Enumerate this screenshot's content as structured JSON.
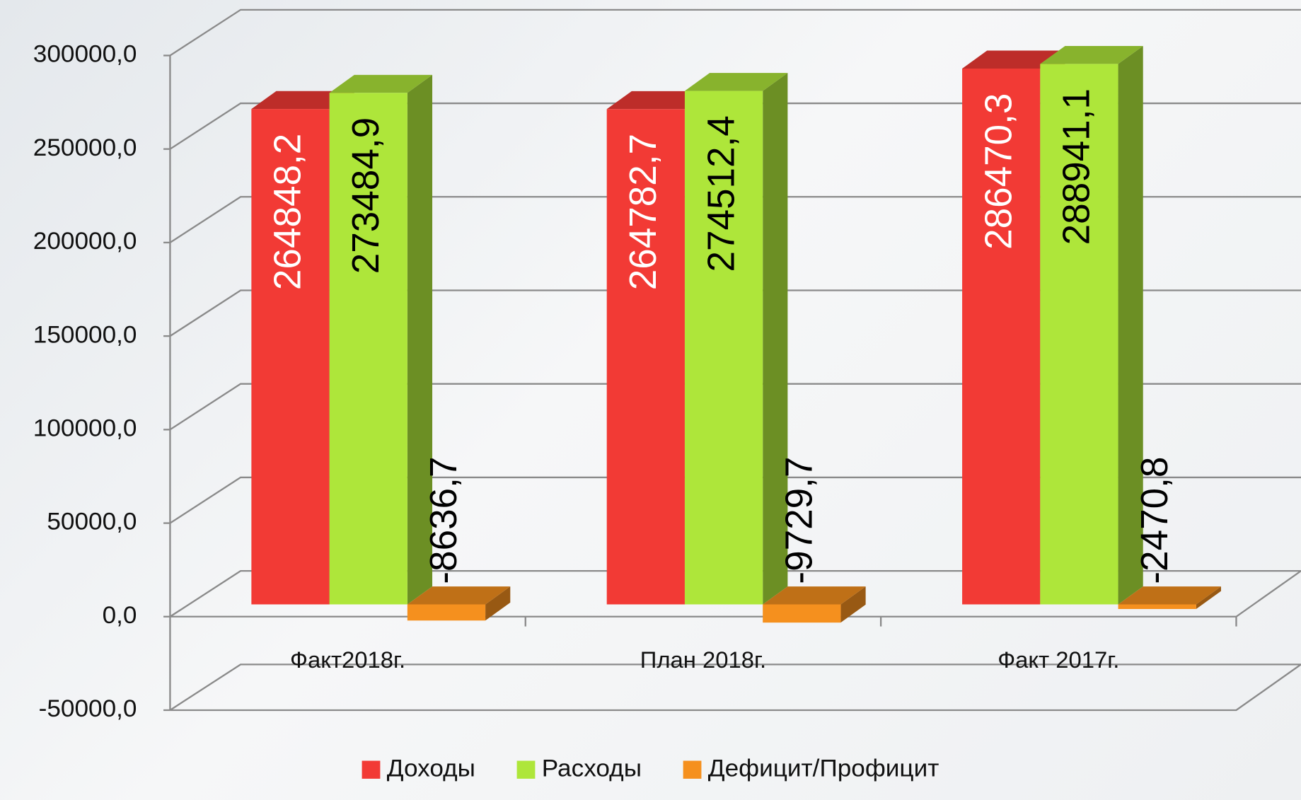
{
  "chart_data": {
    "type": "bar",
    "categories": [
      "Факт2018г.",
      "План 2018г.",
      "Факт 2017г."
    ],
    "series": [
      {
        "name": "Доходы",
        "color": "#f23a35",
        "values": [
          264848.2,
          264782.7,
          286470.3
        ],
        "value_labels": [
          "264848,2",
          "264782,7",
          "286470,3"
        ]
      },
      {
        "name": "Расходы",
        "color": "#aee63a",
        "values": [
          273484.9,
          274512.4,
          288941.1
        ],
        "value_labels": [
          "273484,9",
          "274512,4",
          "288941,1"
        ]
      },
      {
        "name": "Дефицит/Профицит",
        "color": "#f5901e",
        "values": [
          -8636.7,
          -9729.7,
          -2470.8
        ],
        "value_labels": [
          "-8636,7",
          "-9729,7",
          "-2470,8"
        ]
      }
    ],
    "ylim": [
      -50000,
      300000
    ],
    "yticks": [
      {
        "value": -50000,
        "label": "-50000,0"
      },
      {
        "value": 0,
        "label": "0,0"
      },
      {
        "value": 50000,
        "label": "50000,0"
      },
      {
        "value": 100000,
        "label": "100000,0"
      },
      {
        "value": 150000,
        "label": "150000,0"
      },
      {
        "value": 200000,
        "label": "200000,0"
      },
      {
        "value": 250000,
        "label": "250000,0"
      },
      {
        "value": 300000,
        "label": "300000,0"
      }
    ],
    "grid": true,
    "legend": "bottom"
  }
}
